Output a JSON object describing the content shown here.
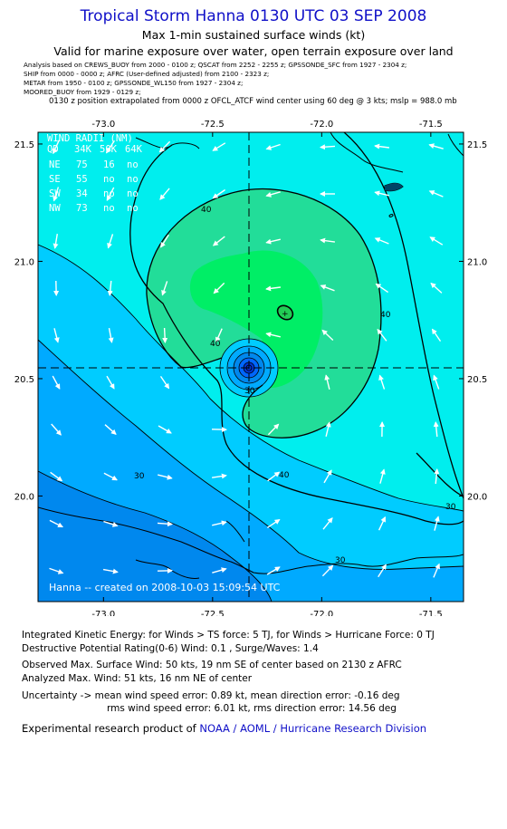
{
  "header": {
    "title": "Tropical Storm Hanna 0130 UTC 03 SEP 2008",
    "subtitle1": "Max 1-min sustained surface winds (kt)",
    "subtitle2": "Valid for marine exposure over water, open terrain exposure over land",
    "analysis_lines": [
      "Analysis based on   CREWS_BUOY from 2000 - 0100 z;  QSCAT from 2252 - 2255 z;  GPSSONDE_SFC from 1927 - 2304 z;",
      "SHIP from 0000 - 0000 z;  AFRC (User-defined adjusted) from 2100 - 2323 z;",
      "METAR from 1950 - 0100 z;  GPSSONDE_WL150 from 1927 - 2304 z;",
      "MOORED_BUOY from 1929 - 0129 z;"
    ],
    "extrapolation": "0130 z position extrapolated from 0000 z OFCL_ATCF wind center using 60 deg @ 3 kts; mslp = 988.0 mb"
  },
  "map": {
    "x_ticks": [
      "-73.0",
      "-72.5",
      "-72.0",
      "-71.5"
    ],
    "y_ticks": [
      "21.5",
      "21.0",
      "20.5",
      "20.0"
    ],
    "lon_range": [
      -73.3,
      -71.35
    ],
    "lat_range": [
      19.55,
      21.55
    ],
    "center": {
      "lon": -72.35,
      "lat": 20.53
    },
    "colors": {
      "cyan": "#00eeee",
      "light_blue": "#00ccff",
      "mid_blue": "#00aaff",
      "dark_blue": "#0088ee",
      "green": "#22dd99",
      "bright_green": "#00ee66",
      "core_blue": "#0066ff"
    },
    "contour_labels": [
      "40",
      "40",
      "40",
      "40",
      "30",
      "30",
      "30",
      "30"
    ],
    "wind_radii": {
      "title": "WIND RADII (NM)",
      "header": [
        "QD",
        "34K",
        "50K",
        "64K"
      ],
      "rows": [
        [
          "NE",
          "75",
          "16",
          "no"
        ],
        [
          "SE",
          "55",
          "no",
          "no"
        ],
        [
          "SW",
          "34",
          "no",
          "no"
        ],
        [
          "NW",
          "73",
          "no",
          "no"
        ]
      ]
    },
    "watermark": "Hanna -- created on 2008-10-03 15:09:54 UTC"
  },
  "footer": {
    "ike": "Integrated Kinetic Energy:  for Winds > TS force: 5 TJ,  for Winds > Hurricane Force: 0 TJ",
    "dpr": "Destructive Potential Rating(0-6)   Wind: 0.1 , Surge/Waves: 1.4",
    "obs_max": "Observed Max. Surface Wind: 50 kts, 19 nm SE of center based on 2130 z AFRC",
    "analyzed_max": "Analyzed Max. Wind: 51 kts, 16 nm NE of center",
    "uncertainty1": "Uncertainty -> mean wind speed error: 0.89 kt,   mean direction error:  -0.16 deg",
    "uncertainty2": "rms wind speed error: 6.01 kt,   rms direction error: 14.56 deg",
    "credit_prefix": "Experimental research product of ",
    "credit_link": "NOAA / AOML / Hurricane Research Division"
  }
}
